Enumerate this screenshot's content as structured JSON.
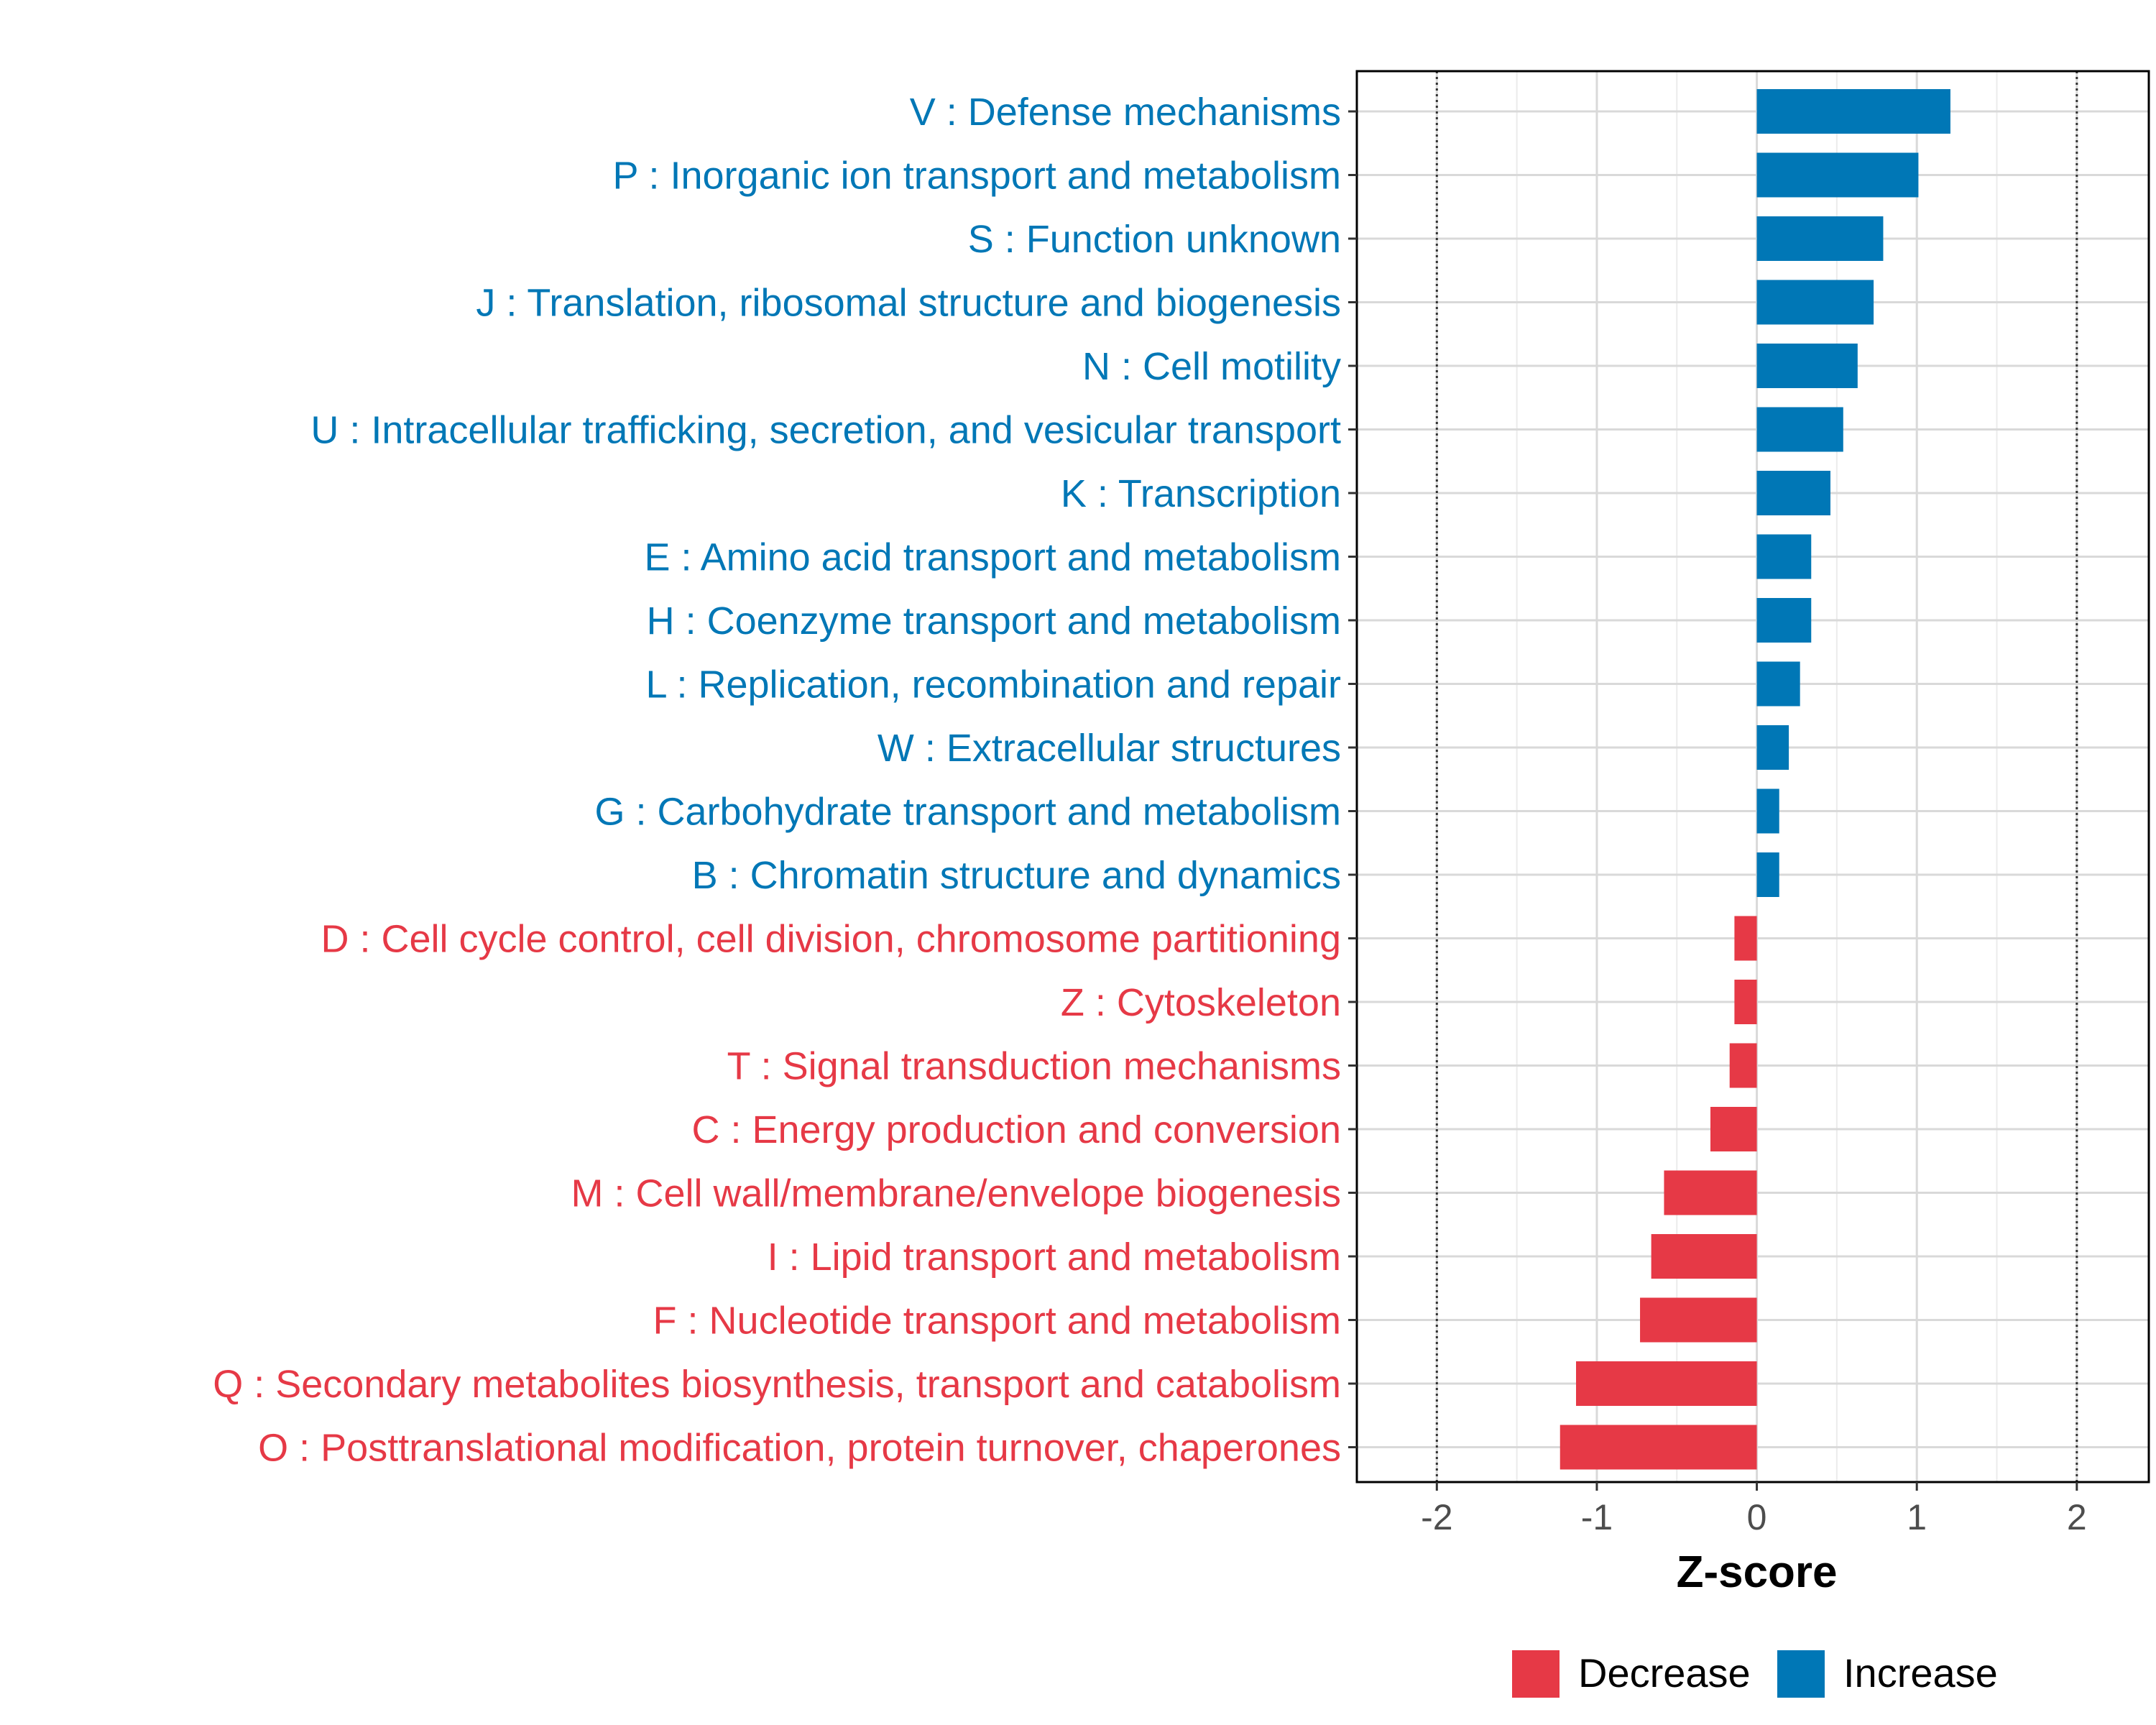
{
  "chart_data": {
    "type": "bar",
    "orientation": "horizontal",
    "xlabel": "Z-score",
    "ylabel": "",
    "xlim": [
      -2.5,
      2.45
    ],
    "xticks": [
      -2,
      -1,
      0,
      1,
      2
    ],
    "xtick_labels": [
      "-2",
      "-1",
      "0",
      "1",
      "2"
    ],
    "reference_lines": [
      -2,
      2
    ],
    "grid": true,
    "colors": {
      "Decrease": "#e63946",
      "Increase": "#0077b6"
    },
    "categories": [
      "V : Defense mechanisms",
      "P : Inorganic ion transport and metabolism",
      "S : Function unknown",
      "J : Translation, ribosomal structure and biogenesis",
      "N : Cell motility",
      "U : Intracellular trafficking, secretion, and vesicular transport",
      "K : Transcription",
      "E : Amino acid transport and metabolism",
      "H : Coenzyme transport and metabolism",
      "L : Replication, recombination and repair",
      "W : Extracellular structures",
      "G : Carbohydrate transport and metabolism",
      "B : Chromatin structure and dynamics",
      "D : Cell cycle control, cell division, chromosome partitioning",
      "Z : Cytoskeleton",
      "T : Signal transduction mechanisms",
      "C : Energy production and conversion",
      "M : Cell wall/membrane/envelope biogenesis",
      "I : Lipid transport and metabolism",
      "F : Nucleotide transport and metabolism",
      "Q : Secondary metabolites biosynthesis, transport and catabolism",
      "O : Posttranslational modification, protein turnover, chaperones"
    ],
    "values": [
      1.21,
      1.01,
      0.79,
      0.73,
      0.63,
      0.54,
      0.46,
      0.34,
      0.34,
      0.27,
      0.2,
      0.14,
      0.14,
      -0.14,
      -0.14,
      -0.17,
      -0.29,
      -0.58,
      -0.66,
      -0.73,
      -1.13,
      -1.23
    ],
    "groups": [
      "Increase",
      "Increase",
      "Increase",
      "Increase",
      "Increase",
      "Increase",
      "Increase",
      "Increase",
      "Increase",
      "Increase",
      "Increase",
      "Increase",
      "Increase",
      "Decrease",
      "Decrease",
      "Decrease",
      "Decrease",
      "Decrease",
      "Decrease",
      "Decrease",
      "Decrease",
      "Decrease"
    ],
    "legend": {
      "position": "bottom",
      "entries": [
        "Decrease",
        "Increase"
      ]
    }
  }
}
